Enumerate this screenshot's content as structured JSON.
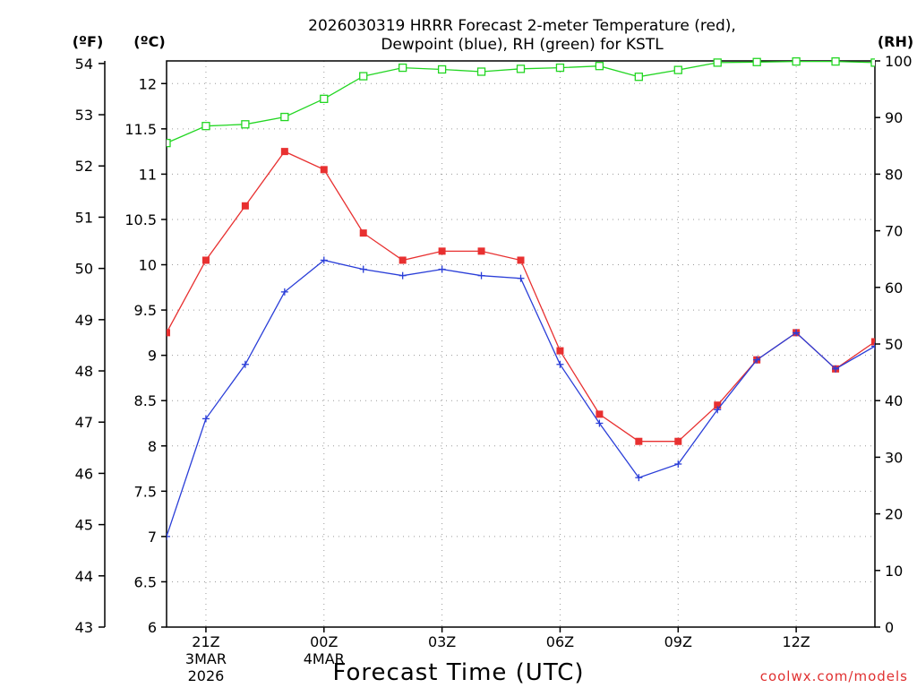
{
  "chart_data": {
    "type": "line",
    "title_line1": "2026030319 HRRR Forecast 2-meter Temperature (red),",
    "title_line2": "Dewpoint (blue), RH (green) for KSTL",
    "xlabel": "Forecast Time (UTC)",
    "credit": "coolwx.com/models",
    "units": {
      "f": "(ºF)",
      "c": "(ºC)",
      "rh": "(RH)"
    },
    "x_hours": [
      20,
      21,
      22,
      23,
      24,
      25,
      26,
      27,
      28,
      29,
      30,
      31,
      32,
      33,
      34,
      35,
      36,
      37,
      38
    ],
    "x_ticks": [
      {
        "x": 21,
        "label": "21Z",
        "sub1": "3MAR",
        "sub2": "2026"
      },
      {
        "x": 24,
        "label": "00Z",
        "sub1": "4MAR",
        "sub2": ""
      },
      {
        "x": 27,
        "label": "03Z",
        "sub1": "",
        "sub2": ""
      },
      {
        "x": 30,
        "label": "06Z",
        "sub1": "",
        "sub2": ""
      },
      {
        "x": 33,
        "label": "09Z",
        "sub1": "",
        "sub2": ""
      },
      {
        "x": 36,
        "label": "12Z",
        "sub1": "",
        "sub2": ""
      }
    ],
    "xlim": [
      20,
      38
    ],
    "ylim_c": [
      6,
      12.25
    ],
    "ylim_f": [
      43,
      54.05
    ],
    "ylim_rh": [
      0,
      100
    ],
    "yticks_c": [
      "6",
      "6.5",
      "7",
      "7.5",
      "8",
      "8.5",
      "9",
      "9.5",
      "10",
      "10.5",
      "11",
      "11.5",
      "12"
    ],
    "yticks_f": [
      "43",
      "44",
      "45",
      "46",
      "47",
      "48",
      "49",
      "50",
      "51",
      "52",
      "53",
      "54"
    ],
    "yticks_rh": [
      "0",
      "10",
      "20",
      "30",
      "40",
      "50",
      "60",
      "70",
      "80",
      "90",
      "100"
    ],
    "series": [
      {
        "name": "Temperature (red)",
        "axis": "c",
        "color": "#e83030",
        "marker": "filled-square",
        "values": [
          9.25,
          10.05,
          10.65,
          11.25,
          11.05,
          10.35,
          10.05,
          10.15,
          10.15,
          10.05,
          9.05,
          8.35,
          8.05,
          8.05,
          8.45,
          8.95,
          9.25,
          8.85,
          9.15
        ]
      },
      {
        "name": "Dewpoint (blue)",
        "axis": "c",
        "color": "#2a3ed8",
        "marker": "plus",
        "values": [
          7.0,
          8.3,
          8.9,
          9.7,
          10.05,
          9.95,
          9.88,
          9.95,
          9.88,
          9.85,
          8.9,
          8.25,
          7.65,
          7.8,
          8.4,
          8.95,
          9.25,
          8.85,
          9.1
        ]
      },
      {
        "name": "RH (green)",
        "axis": "rh",
        "color": "#22d622",
        "marker": "open-square",
        "values": [
          85.5,
          88.5,
          88.8,
          90.1,
          93.3,
          97.3,
          98.8,
          98.5,
          98.1,
          98.6,
          98.8,
          99.1,
          97.2,
          98.4,
          99.7,
          99.8,
          99.9,
          99.9,
          99.7
        ]
      }
    ],
    "grid": true,
    "legend": "none (series named in title)"
  }
}
